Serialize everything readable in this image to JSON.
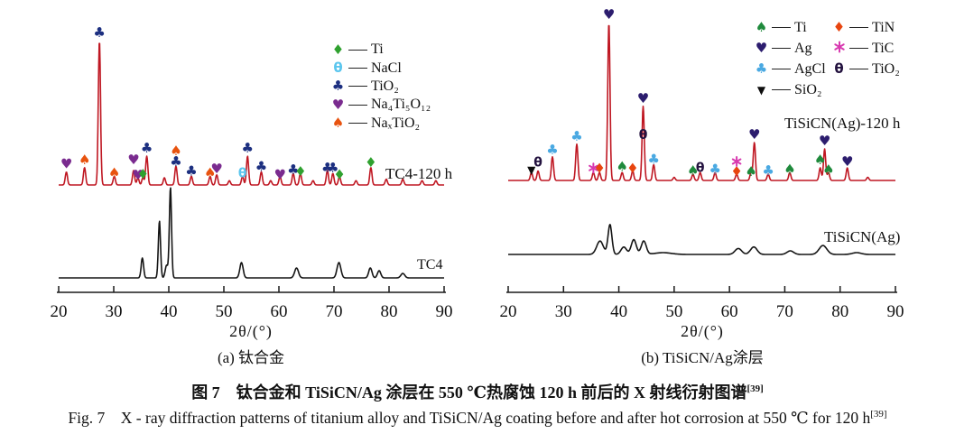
{
  "figure": {
    "caption_cn": "图 7　钛合金和 TiSiCN/Ag 涂层在 550 ℃热腐蚀 120 h 前后的 X 射线衍射图谱",
    "caption_en": "Fig. 7　X - ray diffraction patterns of titanium alloy and TiSiCN/Ag coating before and after hot corrosion at 550 ℃ for 120 h",
    "ref": "[39]"
  },
  "chart_data": [
    {
      "type": "line",
      "panel": "a",
      "title": "(a) 钛合金",
      "xlabel": "2θ/(°)",
      "ylabel": "",
      "xlim": [
        20,
        90
      ],
      "xticks": [
        20,
        30,
        40,
        50,
        60,
        70,
        80,
        90
      ],
      "grid": false,
      "legend_position": "upper-right-inside",
      "legend": [
        {
          "id": "Ti",
          "sym": "diamond",
          "color": "#2fa12f",
          "label": "Ti"
        },
        {
          "id": "NaCl",
          "sym": "theta",
          "color": "#5bc6ee",
          "label": "NaCl"
        },
        {
          "id": "TiO2",
          "sym": "club",
          "color": "#1c2f80",
          "label": "TiO₂"
        },
        {
          "id": "Na4Ti5O12",
          "sym": "heart",
          "color": "#7a2b8f",
          "label": "Na₄Ti₅O₁₂"
        },
        {
          "id": "NaxTiO2",
          "sym": "spade",
          "color": "#e8530f",
          "label": "NaₓTiO₂"
        }
      ],
      "series": [
        {
          "name": "TC4-120 h",
          "color": "#bf1722",
          "peaks": [
            [
              21.4,
              0.09
            ],
            [
              24.7,
              0.12
            ],
            [
              27.4,
              1.0
            ],
            [
              30.1,
              0.06
            ],
            [
              33.6,
              0.1
            ],
            [
              34.4,
              0.05
            ],
            [
              35.3,
              0.05
            ],
            [
              36.0,
              0.2
            ],
            [
              39.2,
              0.05
            ],
            [
              41.3,
              0.13
            ],
            [
              44.1,
              0.06
            ],
            [
              47.5,
              0.06
            ],
            [
              48.7,
              0.07
            ],
            [
              51.0,
              0.03
            ],
            [
              53.4,
              0.06
            ],
            [
              54.3,
              0.2
            ],
            [
              56.8,
              0.09
            ],
            [
              58.5,
              0.03
            ],
            [
              60.2,
              0.06
            ],
            [
              62.6,
              0.08
            ],
            [
              63.9,
              0.08
            ],
            [
              66.2,
              0.03
            ],
            [
              68.8,
              0.1
            ],
            [
              69.8,
              0.08
            ],
            [
              71.0,
              0.06
            ],
            [
              74.0,
              0.03
            ],
            [
              76.7,
              0.12
            ],
            [
              79.5,
              0.04
            ],
            [
              82.5,
              0.04
            ],
            [
              86.0,
              0.03
            ],
            [
              88.5,
              0.03
            ]
          ],
          "markers": [
            {
              "x": 21.4,
              "id": "Na4Ti5O12"
            },
            {
              "x": 24.7,
              "id": "NaxTiO2"
            },
            {
              "x": 27.4,
              "id": "TiO2"
            },
            {
              "x": 30.1,
              "id": "NaxTiO2",
              "lift": 4
            },
            {
              "x": 33.6,
              "id": "Na4Ti5O12",
              "lift": 12
            },
            {
              "x": 34.4,
              "id": "Na4Ti5O12",
              "lift": 3
            },
            {
              "x": 35.3,
              "id": "Ti",
              "lift": 4
            },
            {
              "x": 36.0,
              "id": "TiO2"
            },
            {
              "x": 41.3,
              "id": "TiO2",
              "lift": 5
            },
            {
              "x": 41.3,
              "id": "NaxTiO2",
              "lift": 17
            },
            {
              "x": 44.1,
              "id": "TiO2",
              "lift": 6
            },
            {
              "x": 47.5,
              "id": "NaxTiO2",
              "lift": 4
            },
            {
              "x": 48.7,
              "id": "Na4Ti5O12",
              "lift": 7
            },
            {
              "x": 53.4,
              "id": "NaCl",
              "lift": 3
            },
            {
              "x": 54.3,
              "id": "TiO2"
            },
            {
              "x": 56.8,
              "id": "TiO2",
              "lift": 6
            },
            {
              "x": 60.2,
              "id": "Na4Ti5O12",
              "lift": 2
            },
            {
              "x": 62.6,
              "id": "TiO2",
              "lift": 4
            },
            {
              "x": 63.9,
              "id": "Ti",
              "lift": 2
            },
            {
              "x": 68.8,
              "id": "TiO2",
              "lift": 3
            },
            {
              "x": 69.8,
              "id": "TiO2",
              "lift": 6
            },
            {
              "x": 71.0,
              "id": "Ti",
              "lift": 2
            },
            {
              "x": 76.7,
              "id": "Ti",
              "lift": 6
            }
          ]
        },
        {
          "name": "TC4",
          "color": "#151515",
          "peaks": [
            [
              35.2,
              0.22,
              0.22
            ],
            [
              38.3,
              0.63,
              0.2
            ],
            [
              39.6,
              0.14,
              0.25
            ],
            [
              40.3,
              1.0,
              0.2
            ],
            [
              53.2,
              0.17,
              0.3
            ],
            [
              63.2,
              0.11,
              0.35
            ],
            [
              70.9,
              0.17,
              0.35
            ],
            [
              76.6,
              0.11,
              0.3
            ],
            [
              78.2,
              0.08,
              0.3
            ],
            [
              82.5,
              0.05,
              0.35
            ]
          ],
          "markers": []
        }
      ]
    },
    {
      "type": "line",
      "panel": "b",
      "title": "(b) TiSiCN/Ag涂层",
      "xlabel": "2θ/(°)",
      "ylabel": "",
      "xlim": [
        20,
        90
      ],
      "xticks": [
        20,
        30,
        40,
        50,
        60,
        70,
        80,
        90
      ],
      "grid": false,
      "legend_position": "upper-right-inside-two-columns",
      "legend": [
        {
          "id": "Ti",
          "sym": "spade",
          "color": "#1f8a3c",
          "label": "Ti",
          "col": 0
        },
        {
          "id": "Ag",
          "sym": "heart",
          "color": "#2c1d6e",
          "label": "Ag",
          "col": 0
        },
        {
          "id": "AgCl",
          "sym": "club",
          "color": "#4aa9e2",
          "label": "AgCl",
          "col": 0
        },
        {
          "id": "SiO2",
          "sym": "triangle-down",
          "color": "#0d0d0d",
          "label": "SiO₂",
          "col": 0
        },
        {
          "id": "TiN",
          "sym": "diamond",
          "color": "#e8450f",
          "label": "TiN",
          "col": 1
        },
        {
          "id": "TiC",
          "sym": "asterisk",
          "color": "#d83ab0",
          "label": "TiC",
          "col": 1
        },
        {
          "id": "TiO2",
          "sym": "theta",
          "color": "#23123f",
          "label": "TiO₂",
          "col": 1
        }
      ],
      "series": [
        {
          "name": "TiSiCN(Ag)-120 h",
          "color": "#bf1722",
          "peaks": [
            [
              24.2,
              0.05
            ],
            [
              25.4,
              0.06
            ],
            [
              28.0,
              0.15
            ],
            [
              32.4,
              0.23
            ],
            [
              35.4,
              0.05
            ],
            [
              36.5,
              0.05
            ],
            [
              38.2,
              1.0
            ],
            [
              40.6,
              0.05
            ],
            [
              42.5,
              0.06
            ],
            [
              44.4,
              0.47
            ],
            [
              46.3,
              0.1
            ],
            [
              50.0,
              0.02
            ],
            [
              53.4,
              0.04
            ],
            [
              54.7,
              0.05
            ],
            [
              57.4,
              0.05
            ],
            [
              61.3,
              0.04
            ],
            [
              63.9,
              0.05
            ],
            [
              64.5,
              0.24
            ],
            [
              67.0,
              0.04
            ],
            [
              70.9,
              0.05
            ],
            [
              76.4,
              0.08
            ],
            [
              77.2,
              0.2
            ],
            [
              77.9,
              0.05
            ],
            [
              81.3,
              0.08
            ],
            [
              85.0,
              0.02
            ]
          ],
          "markers": [
            {
              "x": 24.2,
              "id": "SiO2",
              "lift": 3
            },
            {
              "x": 25.4,
              "id": "TiO2",
              "lift": 9
            },
            {
              "x": 28.0,
              "id": "AgCl",
              "lift": 8
            },
            {
              "x": 32.4,
              "id": "AgCl",
              "lift": 9
            },
            {
              "x": 35.4,
              "id": "TiC",
              "lift": 5
            },
            {
              "x": 36.5,
              "id": "TiN",
              "lift": 5
            },
            {
              "x": 38.2,
              "id": "Ag"
            },
            {
              "x": 40.6,
              "id": "Ti",
              "lift": 7
            },
            {
              "x": 42.5,
              "id": "TiN",
              "lift": 3
            },
            {
              "x": 44.4,
              "id": "Ag"
            },
            {
              "x": 44.4,
              "id": "TiO2",
              "lift": -32
            },
            {
              "x": 46.3,
              "id": "AgCl",
              "lift": 6
            },
            {
              "x": 53.4,
              "id": "Ti",
              "lift": 4
            },
            {
              "x": 54.7,
              "id": "TiO2",
              "lift": 5
            },
            {
              "x": 57.4,
              "id": "AgCl",
              "lift": 4
            },
            {
              "x": 61.3,
              "id": "TiN",
              "lift": 3
            },
            {
              "x": 61.3,
              "id": "TiC",
              "lift": 14
            },
            {
              "x": 63.9,
              "id": "Ti",
              "lift": 1
            },
            {
              "x": 64.5,
              "id": "Ag"
            },
            {
              "x": 67.0,
              "id": "AgCl",
              "lift": 4
            },
            {
              "x": 70.9,
              "id": "Ti",
              "lift": 4
            },
            {
              "x": 76.4,
              "id": "Ti",
              "lift": 9
            },
            {
              "x": 77.2,
              "id": "Ag"
            },
            {
              "x": 77.9,
              "id": "Ti",
              "lift": 3
            },
            {
              "x": 81.3,
              "id": "Ag",
              "lift": 7
            }
          ]
        },
        {
          "name": "TiSiCN(Ag)",
          "color": "#151515",
          "peaks": [
            [
              36.6,
              0.45,
              0.6
            ],
            [
              38.4,
              1.0,
              0.35
            ],
            [
              40.9,
              0.25,
              0.5
            ],
            [
              42.7,
              0.5,
              0.45
            ],
            [
              44.5,
              0.45,
              0.45
            ],
            [
              48.0,
              0.06,
              1.5
            ],
            [
              61.6,
              0.2,
              0.6
            ],
            [
              64.4,
              0.25,
              0.6
            ],
            [
              71.0,
              0.12,
              0.6
            ],
            [
              76.9,
              0.3,
              0.7
            ],
            [
              83.0,
              0.06,
              0.8
            ]
          ],
          "markers": []
        }
      ]
    }
  ]
}
